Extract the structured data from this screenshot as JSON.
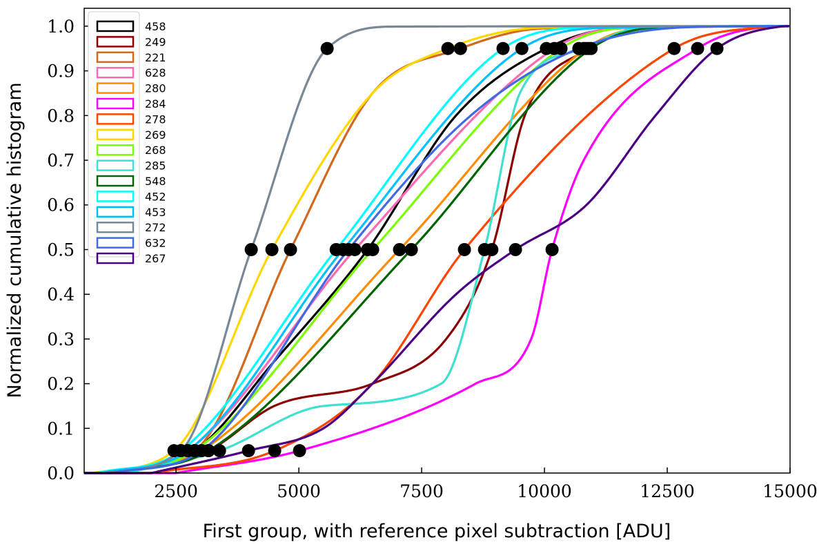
{
  "chart_data": {
    "type": "line",
    "title": "",
    "xlabel": "First group, with reference pixel subtraction [ADU]",
    "ylabel": "Normalized cumulative histogram",
    "xlim": [
      630,
      15000
    ],
    "ylim": [
      0,
      1.04
    ],
    "xticks": [
      2500,
      5000,
      7500,
      10000,
      12500,
      15000
    ],
    "yticks": [
      "0.0",
      "0.1",
      "0.2",
      "0.3",
      "0.4",
      "0.5",
      "0.6",
      "0.7",
      "0.8",
      "0.9",
      "1.0"
    ],
    "grid": false,
    "legend_position": "top-left",
    "marker_levels": [
      0.05,
      0.5,
      0.95
    ],
    "series": [
      {
        "name": "458",
        "color": "#000000",
        "markers": [
          2880,
          6400,
          10040
        ],
        "points": [
          [
            1000,
            0
          ],
          [
            2880,
            0.05
          ],
          [
            4500,
            0.25
          ],
          [
            6400,
            0.5
          ],
          [
            8200,
            0.8
          ],
          [
            10040,
            0.95
          ],
          [
            11500,
            0.995
          ],
          [
            15000,
            1
          ]
        ]
      },
      {
        "name": "249",
        "color": "#8b0000",
        "markers": [
          3160,
          8930,
          10900
        ],
        "points": [
          [
            1500,
            0
          ],
          [
            3160,
            0.05
          ],
          [
            4500,
            0.15
          ],
          [
            6500,
            0.2
          ],
          [
            8000,
            0.3
          ],
          [
            8930,
            0.5
          ],
          [
            9600,
            0.8
          ],
          [
            10900,
            0.95
          ],
          [
            12000,
            0.995
          ],
          [
            15000,
            1
          ]
        ]
      },
      {
        "name": "221",
        "color": "#d2691e",
        "markers": [
          2880,
          4830,
          8290
        ],
        "points": [
          [
            1000,
            0
          ],
          [
            2880,
            0.05
          ],
          [
            4830,
            0.5
          ],
          [
            6500,
            0.85
          ],
          [
            8290,
            0.95
          ],
          [
            10000,
            0.995
          ],
          [
            15000,
            1
          ]
        ]
      },
      {
        "name": "628",
        "color": "#ff69b4",
        "markers": [
          2740,
          6140,
          10200
        ],
        "points": [
          [
            1000,
            0
          ],
          [
            2740,
            0.05
          ],
          [
            6140,
            0.5
          ],
          [
            10200,
            0.95
          ],
          [
            11500,
            0.995
          ],
          [
            15000,
            1
          ]
        ]
      },
      {
        "name": "280",
        "color": "#ff8c00",
        "markers": [
          3020,
          7050,
          10850
        ],
        "points": [
          [
            1200,
            0
          ],
          [
            3020,
            0.05
          ],
          [
            7050,
            0.5
          ],
          [
            10850,
            0.95
          ],
          [
            12000,
            0.995
          ],
          [
            15000,
            1
          ]
        ]
      },
      {
        "name": "284",
        "color": "#ff00ff",
        "markers": [
          5014,
          10155,
          13118
        ],
        "points": [
          [
            2500,
            0
          ],
          [
            5014,
            0.05
          ],
          [
            8600,
            0.2
          ],
          [
            9730,
            0.3
          ],
          [
            10155,
            0.5
          ],
          [
            10800,
            0.7
          ],
          [
            13118,
            0.95
          ],
          [
            14500,
            0.998
          ],
          [
            15000,
            1
          ]
        ]
      },
      {
        "name": "278",
        "color": "#ff4500",
        "markers": [
          4508,
          8371,
          12641
        ],
        "points": [
          [
            2000,
            0
          ],
          [
            4508,
            0.05
          ],
          [
            6500,
            0.2
          ],
          [
            8371,
            0.5
          ],
          [
            12641,
            0.95
          ],
          [
            14500,
            0.998
          ],
          [
            15000,
            1
          ]
        ]
      },
      {
        "name": "269",
        "color": "#ffd700",
        "markers": [
          2458,
          4452,
          8034
        ],
        "points": [
          [
            800,
            0
          ],
          [
            2458,
            0.05
          ],
          [
            4452,
            0.5
          ],
          [
            6500,
            0.85
          ],
          [
            8034,
            0.95
          ],
          [
            10000,
            0.997
          ],
          [
            15000,
            1
          ]
        ]
      },
      {
        "name": "268",
        "color": "#7cfc00",
        "markers": [
          2879,
          6503,
          10337
        ],
        "points": [
          [
            1000,
            0
          ],
          [
            2879,
            0.05
          ],
          [
            6503,
            0.5
          ],
          [
            10337,
            0.95
          ],
          [
            11800,
            0.997
          ],
          [
            15000,
            1
          ]
        ]
      },
      {
        "name": "285",
        "color": "#40e0d0",
        "markers": [
          3385,
          8780,
          10800
        ],
        "points": [
          [
            1500,
            0
          ],
          [
            3385,
            0.05
          ],
          [
            5500,
            0.15
          ],
          [
            7900,
            0.2
          ],
          [
            8780,
            0.5
          ],
          [
            9500,
            0.85
          ],
          [
            10800,
            0.95
          ],
          [
            12000,
            0.997
          ],
          [
            15000,
            1
          ]
        ]
      },
      {
        "name": "548",
        "color": "#006400",
        "markers": [
          3160,
          7290,
          10950
        ],
        "points": [
          [
            1200,
            0
          ],
          [
            3160,
            0.05
          ],
          [
            7290,
            0.5
          ],
          [
            10950,
            0.95
          ],
          [
            12500,
            0.998
          ],
          [
            15000,
            1
          ]
        ]
      },
      {
        "name": "452",
        "color": "#00ffff",
        "markers": [
          2600,
          5760,
          9157
        ],
        "points": [
          [
            900,
            0
          ],
          [
            2600,
            0.05
          ],
          [
            5760,
            0.5
          ],
          [
            9157,
            0.95
          ],
          [
            11000,
            0.997
          ],
          [
            15000,
            1
          ]
        ]
      },
      {
        "name": "453",
        "color": "#00bfff",
        "markers": [
          2740,
          5900,
          9540
        ],
        "points": [
          [
            1000,
            0
          ],
          [
            2740,
            0.05
          ],
          [
            5900,
            0.5
          ],
          [
            9540,
            0.95
          ],
          [
            11500,
            0.997
          ],
          [
            15000,
            1
          ]
        ]
      },
      {
        "name": "272",
        "color": "#778899",
        "markers": [
          2600,
          4031,
          5576
        ],
        "points": [
          [
            1000,
            0
          ],
          [
            2600,
            0.05
          ],
          [
            4031,
            0.5
          ],
          [
            5576,
            0.95
          ],
          [
            7000,
            0.999
          ],
          [
            15000,
            1
          ]
        ]
      },
      {
        "name": "632",
        "color": "#4169e1",
        "markers": [
          3020,
          6011,
          10700
        ],
        "points": [
          [
            1200,
            0
          ],
          [
            3020,
            0.05
          ],
          [
            6011,
            0.5
          ],
          [
            8500,
            0.8
          ],
          [
            10700,
            0.95
          ],
          [
            13000,
            0.998
          ],
          [
            15000,
            1
          ]
        ]
      },
      {
        "name": "267",
        "color": "#4b0082",
        "markers": [
          3975,
          9410,
          13512
        ],
        "points": [
          [
            2000,
            0
          ],
          [
            3975,
            0.05
          ],
          [
            5500,
            0.1
          ],
          [
            6500,
            0.2
          ],
          [
            8200,
            0.4
          ],
          [
            9410,
            0.5
          ],
          [
            10856,
            0.6
          ],
          [
            12261,
            0.8
          ],
          [
            13512,
            0.95
          ],
          [
            14800,
            0.999
          ],
          [
            15000,
            1
          ]
        ]
      }
    ]
  }
}
